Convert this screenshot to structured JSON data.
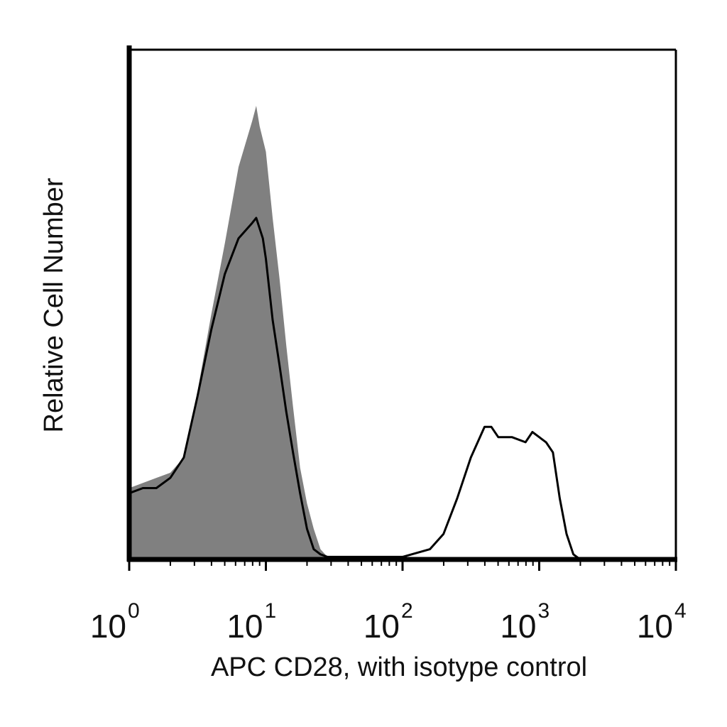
{
  "chart_data": {
    "type": "area",
    "title": "",
    "xlabel": "APC CD28, with isotype control",
    "ylabel": "Relative Cell Number",
    "x_scale": "log",
    "xlim": [
      1,
      10000
    ],
    "ylim": [
      0,
      100
    ],
    "grid": false,
    "x_ticks": [
      {
        "base": "10",
        "exp": "0",
        "value": 1
      },
      {
        "base": "10",
        "exp": "1",
        "value": 10
      },
      {
        "base": "10",
        "exp": "2",
        "value": 100
      },
      {
        "base": "10",
        "exp": "3",
        "value": 1000
      },
      {
        "base": "10",
        "exp": "4",
        "value": 10000
      }
    ],
    "series": [
      {
        "style": "filled",
        "color": "#808080",
        "x": [
          1.0,
          1.26,
          1.58,
          2.0,
          2.51,
          3.16,
          3.98,
          5.01,
          6.31,
          7.94,
          8.5,
          9.0,
          10.0,
          11.2,
          12.6,
          14.1,
          15.8,
          17.8,
          20.0,
          22.4,
          25.1,
          28.2,
          31.6,
          35.5,
          50.0,
          100.0,
          1000.0,
          10000.0
        ],
        "y": [
          14,
          15,
          16,
          17,
          20,
          33,
          48,
          62,
          77,
          86,
          89,
          85,
          80,
          67,
          55,
          42,
          30,
          18,
          11,
          6,
          2,
          0.5,
          0,
          0,
          0,
          0,
          0,
          0
        ]
      },
      {
        "style": "line",
        "color": "#000000",
        "x": [
          1.0,
          1.26,
          1.58,
          2.0,
          2.51,
          3.16,
          3.98,
          5.01,
          6.31,
          7.94,
          8.5,
          9.5,
          10.0,
          11.2,
          12.6,
          14.1,
          15.8,
          17.8,
          20.0,
          22.4,
          25.1,
          28.2,
          31.6,
          39.8,
          63.1,
          100.0,
          158.5,
          199.5,
          251.2,
          316.2,
          398.1,
          446.7,
          501.2,
          631.0,
          794.3,
          891.3,
          1000.0,
          1122.0,
          1259.0,
          1413.0,
          1585.0,
          1778.0,
          1995.0,
          2239.0,
          3162.0,
          10000.0
        ],
        "y": [
          13,
          14,
          14,
          16,
          20,
          32,
          45,
          56,
          63,
          66,
          67,
          63,
          59,
          47,
          38,
          29,
          21,
          13,
          6,
          2,
          1,
          0.5,
          0.5,
          0.5,
          0.5,
          0.5,
          2,
          5,
          12,
          20,
          26,
          26,
          24,
          24,
          23,
          25,
          24,
          23,
          21,
          12,
          5,
          1,
          0,
          0,
          0,
          0
        ]
      }
    ]
  }
}
